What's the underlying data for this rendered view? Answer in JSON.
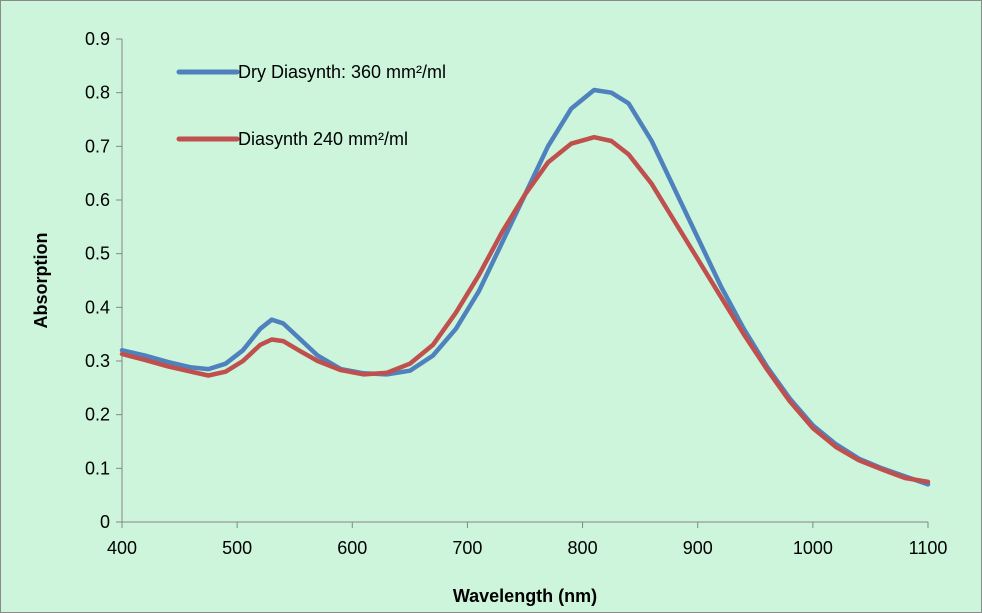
{
  "chart_data": {
    "type": "line",
    "title": "",
    "xlabel": "Wavelength (nm)",
    "ylabel": "Absorption",
    "xlim": [
      400,
      1100
    ],
    "ylim": [
      0,
      0.9
    ],
    "x_ticks": [
      "400",
      "500",
      "600",
      "700",
      "800",
      "900",
      "1000",
      "1100"
    ],
    "y_ticks": [
      "0",
      "0.1",
      "0.2",
      "0.3",
      "0.4",
      "0.5",
      "0.6",
      "0.7",
      "0.8",
      "0.9"
    ],
    "grid": false,
    "legend_position": "top-left",
    "series": [
      {
        "name": "Dry Diasynth: 360 mm²/ml",
        "color": "#4f81bd",
        "points": [
          [
            400,
            0.32
          ],
          [
            420,
            0.31
          ],
          [
            440,
            0.298
          ],
          [
            460,
            0.288
          ],
          [
            475,
            0.285
          ],
          [
            490,
            0.295
          ],
          [
            505,
            0.32
          ],
          [
            520,
            0.36
          ],
          [
            530,
            0.377
          ],
          [
            540,
            0.37
          ],
          [
            555,
            0.34
          ],
          [
            570,
            0.31
          ],
          [
            590,
            0.285
          ],
          [
            610,
            0.277
          ],
          [
            630,
            0.275
          ],
          [
            650,
            0.282
          ],
          [
            670,
            0.31
          ],
          [
            690,
            0.36
          ],
          [
            710,
            0.43
          ],
          [
            730,
            0.52
          ],
          [
            750,
            0.61
          ],
          [
            770,
            0.7
          ],
          [
            790,
            0.77
          ],
          [
            810,
            0.805
          ],
          [
            825,
            0.8
          ],
          [
            840,
            0.78
          ],
          [
            860,
            0.71
          ],
          [
            880,
            0.62
          ],
          [
            900,
            0.53
          ],
          [
            920,
            0.44
          ],
          [
            940,
            0.36
          ],
          [
            960,
            0.29
          ],
          [
            980,
            0.23
          ],
          [
            1000,
            0.18
          ],
          [
            1020,
            0.145
          ],
          [
            1040,
            0.118
          ],
          [
            1060,
            0.1
          ],
          [
            1080,
            0.085
          ],
          [
            1100,
            0.07
          ]
        ]
      },
      {
        "name": "Diasynth 240 mm²/ml",
        "color": "#c0504d",
        "points": [
          [
            400,
            0.313
          ],
          [
            420,
            0.302
          ],
          [
            440,
            0.29
          ],
          [
            460,
            0.28
          ],
          [
            475,
            0.273
          ],
          [
            490,
            0.28
          ],
          [
            505,
            0.3
          ],
          [
            520,
            0.33
          ],
          [
            530,
            0.34
          ],
          [
            540,
            0.337
          ],
          [
            555,
            0.318
          ],
          [
            570,
            0.3
          ],
          [
            590,
            0.283
          ],
          [
            610,
            0.275
          ],
          [
            630,
            0.278
          ],
          [
            650,
            0.295
          ],
          [
            670,
            0.33
          ],
          [
            690,
            0.39
          ],
          [
            710,
            0.46
          ],
          [
            730,
            0.54
          ],
          [
            750,
            0.61
          ],
          [
            770,
            0.67
          ],
          [
            790,
            0.705
          ],
          [
            810,
            0.717
          ],
          [
            825,
            0.71
          ],
          [
            840,
            0.685
          ],
          [
            860,
            0.63
          ],
          [
            880,
            0.56
          ],
          [
            900,
            0.49
          ],
          [
            920,
            0.42
          ],
          [
            940,
            0.35
          ],
          [
            960,
            0.285
          ],
          [
            980,
            0.225
          ],
          [
            1000,
            0.175
          ],
          [
            1020,
            0.14
          ],
          [
            1040,
            0.115
          ],
          [
            1060,
            0.098
          ],
          [
            1080,
            0.082
          ],
          [
            1100,
            0.075
          ]
        ]
      }
    ]
  }
}
